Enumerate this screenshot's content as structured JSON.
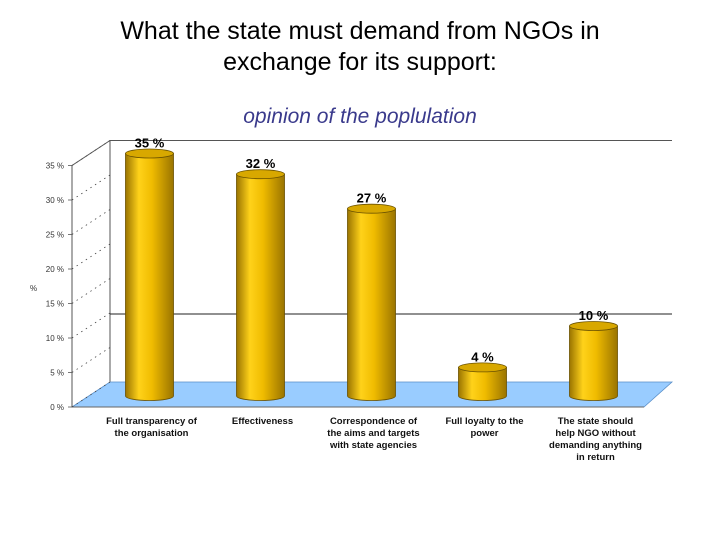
{
  "title_line1": "What the state must demand from NGOs in",
  "title_line2": "exchange for its support:",
  "subtitle": "opinion of the poplulation",
  "chart_data": {
    "type": "bar",
    "title": "What the state must demand from NGOs in exchange for its support:",
    "subtitle": "opinion of the poplulation",
    "ylabel": "%",
    "xlabel": "",
    "ylim": [
      0,
      35
    ],
    "yticks": [
      0,
      5,
      10,
      15,
      20,
      25,
      30,
      35
    ],
    "ytick_labels": [
      "0 %",
      "5 %",
      "10 %",
      "15 %",
      "20 %",
      "25 %",
      "30 %",
      "35 %"
    ],
    "categories": [
      [
        "Full transparency of",
        "the organisation"
      ],
      [
        "Effectiveness"
      ],
      [
        "Correspondence of",
        "the aims and targets",
        "with state agencies"
      ],
      [
        "Full loyalty to the",
        "power"
      ],
      [
        "The state should",
        "help NGO without",
        "demanding anything",
        "in return"
      ]
    ],
    "values": [
      35,
      32,
      27,
      4,
      10
    ],
    "data_labels": [
      "35 %",
      "32 %",
      "27 %",
      "4 %",
      "10 %"
    ],
    "bar_color": "#f2c200",
    "floor_color": "#99ccff",
    "grid": false
  }
}
